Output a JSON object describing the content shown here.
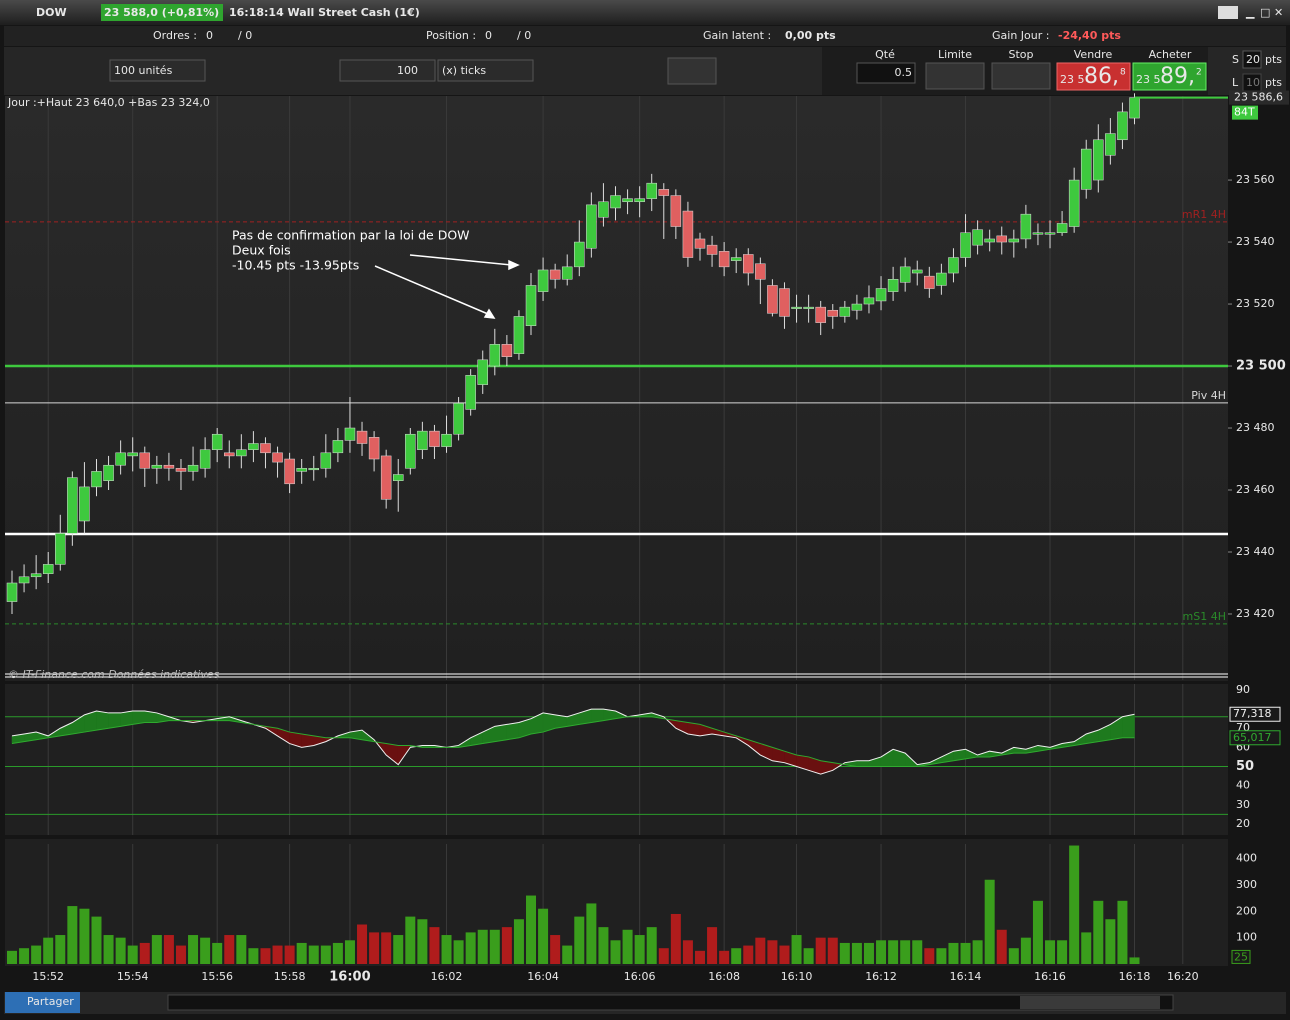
{
  "header": {
    "symbol": "DOW",
    "quote": "23 588,0 (+0,81%)",
    "instrument": "16:18:14 Wall Street Cash (1€)"
  },
  "status": {
    "orders_label": "Ordres :",
    "orders": "0",
    "orders_total": "/ 0",
    "position_label": "Position :",
    "position": "0",
    "position_total": "/ 0",
    "latent_label": "Gain latent :",
    "latent": "0,00 pts",
    "day_label": "Gain Jour :",
    "day": "-24,40 pts"
  },
  "order_bar": {
    "units": "100 unités",
    "ticks_value": "100",
    "ticks_unit": "(x) ticks",
    "qty_label": "Qté",
    "qty": "0.5",
    "limit_label": "Limite",
    "stop_label": "Stop",
    "sell_label": "Vendre",
    "sell_prefix": "23 5",
    "sell_big": "86,",
    "sell_sup": "8",
    "buy_label": "Acheter",
    "buy_prefix": "23 5",
    "buy_big": "89,",
    "buy_sup": "2",
    "s_label": "S",
    "s_value": "20",
    "s_unit": "pts",
    "l_label": "L",
    "l_value": "10",
    "l_unit": "pts"
  },
  "footer": {
    "share": "Partager"
  },
  "chart_data": [
    {
      "type": "candlestick",
      "info": "Jour :+Haut 23 640,0 +Bas 23 324,0",
      "credit": "© IT-Finance.com Données indicatives",
      "annotation": [
        "Pas de confirmation par la loi de DOW",
        "Deux fois",
        "-10.45 pts -13.95pts"
      ],
      "up_color": "#3ec93e",
      "down_color": "#e06060",
      "ylim": [
        23398.7,
        23586.8
      ],
      "yticks": [
        {
          "value": 23420,
          "label": "23 420"
        },
        {
          "value": 23440,
          "label": "23 440"
        },
        {
          "value": 23460,
          "label": "23 460"
        },
        {
          "value": 23480,
          "label": "23 480"
        },
        {
          "value": 23500,
          "label": "23 500"
        },
        {
          "value": 23520,
          "label": "23 520"
        },
        {
          "value": 23540,
          "label": "23 540"
        },
        {
          "value": 23560,
          "label": "23 560"
        }
      ],
      "levels": [
        {
          "value": 23546.5,
          "label": "mR1 4H",
          "color": "#a02020",
          "style": "dashed"
        },
        {
          "value": 23500,
          "color": "#3ec93e",
          "style": "thick"
        },
        {
          "value": 23488.1,
          "label": "Piv 4H",
          "color": "#d8d8d8",
          "style": "solid"
        },
        {
          "value": 23445.8,
          "color": "#ffffff",
          "style": "thick"
        },
        {
          "value": 23416.8,
          "label": "mS1 4H",
          "color": "#2a8a2a",
          "style": "dashed"
        },
        {
          "value": 23400,
          "color": "#ffffff",
          "style": "double"
        }
      ],
      "last_value_label": "23 586,6",
      "last_tag": "84T",
      "open": [
        23424,
        23430,
        23432,
        23433,
        23436,
        23446,
        23450,
        23461,
        23463,
        23468,
        23471,
        23472,
        23467,
        23468,
        23467,
        23466,
        23467,
        23473,
        23472,
        23471,
        23473,
        23475,
        23472,
        23470,
        23466,
        23467,
        23467,
        23472,
        23476,
        23479,
        23477,
        23471,
        23463,
        23467,
        23473,
        23479,
        23474,
        23478,
        23486,
        23494,
        23500,
        23507,
        23504,
        23513,
        23524,
        23531,
        23528,
        23532,
        23538,
        23548,
        23551,
        23553,
        23553,
        23554,
        23557,
        23555,
        23550,
        23541,
        23539,
        23537,
        23534,
        23536,
        23533,
        23526,
        23525,
        23519,
        23519,
        23519,
        23518,
        23516,
        23518,
        23520,
        23521,
        23524,
        23527,
        23530,
        23529,
        23526,
        23530,
        23535,
        23539,
        23540,
        23542,
        23540,
        23541,
        23543,
        23543,
        23543,
        23545,
        23557,
        23560,
        23568,
        23573,
        23580,
        null,
        null,
        null,
        null
      ],
      "high": [
        23434,
        23436,
        23439,
        23440,
        23452,
        23466,
        23469,
        23470,
        23471,
        23476,
        23477,
        23474,
        23471,
        23472,
        23470,
        23474,
        23477,
        23480,
        23476,
        23478,
        23479,
        23477,
        23474,
        23472,
        23470,
        23471,
        23478,
        23480,
        23490,
        23482,
        23479,
        23473,
        23470,
        23480,
        23482,
        23481,
        23484,
        23490,
        23499,
        23505,
        23512,
        23510,
        23518,
        23530,
        23535,
        23533,
        23536,
        23547,
        23556,
        23559,
        23558,
        23557,
        23558,
        23562,
        23559,
        23557,
        23553,
        23543,
        23542,
        23540,
        23538,
        23538,
        23535,
        23528,
        23527,
        23523,
        23523,
        23521,
        23520,
        23521,
        23523,
        23526,
        23529,
        23532,
        23535,
        23534,
        23532,
        23533,
        23538,
        23549,
        23547,
        23544,
        23545,
        23544,
        23552,
        23546,
        23547,
        23550,
        23564,
        23573,
        23578,
        23580,
        23585,
        23588,
        null,
        null,
        null,
        null
      ],
      "low": [
        23420,
        23427,
        23428,
        23430,
        23434,
        23442,
        23446,
        23458,
        23460,
        23465,
        23466,
        23461,
        23462,
        23463,
        23460,
        23463,
        23464,
        23469,
        23467,
        23467,
        23469,
        23467,
        23464,
        23459,
        23462,
        23463,
        23464,
        23469,
        23472,
        23471,
        23466,
        23454,
        23453,
        23465,
        23470,
        23470,
        23472,
        23476,
        23484,
        23491,
        23497,
        23500,
        23502,
        23510,
        23521,
        23525,
        23526,
        23529,
        23535,
        23545,
        23547,
        23549,
        23548,
        23550,
        23541,
        23541,
        23532,
        23534,
        23532,
        23529,
        23530,
        23526,
        23520,
        23516,
        23512,
        23514,
        23514,
        23510,
        23512,
        23514,
        23515,
        23517,
        23518,
        23521,
        23524,
        23526,
        23522,
        23523,
        23527,
        23532,
        23536,
        23537,
        23536,
        23535,
        23538,
        23539,
        23538,
        23542,
        23543,
        23554,
        23556,
        23565,
        23570,
        23578,
        null,
        null,
        null,
        null
      ],
      "close": [
        23430,
        23432,
        23433,
        23436,
        23446,
        23464,
        23461,
        23466,
        23468,
        23472,
        23472,
        23467,
        23468,
        23467,
        23466,
        23468,
        23473,
        23478,
        23471,
        23473,
        23475,
        23472,
        23469,
        23462,
        23467,
        23467,
        23472,
        23476,
        23480,
        23475,
        23470,
        23457,
        23465,
        23478,
        23479,
        23474,
        23478,
        23488,
        23497,
        23502,
        23507,
        23503,
        23516,
        23526,
        23531,
        23528,
        23532,
        23540,
        23552,
        23553,
        23555,
        23554,
        23554,
        23559,
        23555,
        23545,
        23535,
        23538,
        23536,
        23532,
        23535,
        23530,
        23528,
        23517,
        23516,
        23519,
        23519,
        23514,
        23516,
        23519,
        23520,
        23522,
        23525,
        23528,
        23532,
        23531,
        23525,
        23530,
        23535,
        23543,
        23544,
        23541,
        23540,
        23541,
        23549,
        23543,
        23543,
        23546,
        23560,
        23570,
        23573,
        23575,
        23582,
        23586.6,
        null,
        null,
        null,
        null
      ]
    },
    {
      "type": "line",
      "ylim": [
        14.2,
        92.6
      ],
      "yticks": [
        20,
        30,
        40,
        50,
        60,
        70,
        90
      ],
      "levels": [
        76,
        50,
        25
      ],
      "fill_up": "#1e7a1e",
      "fill_down": "#6a1010",
      "series": [
        {
          "color": "#f0f0f0",
          "last_value_label": "77,318",
          "values": [
            66,
            67,
            68,
            66,
            70,
            73,
            77,
            79,
            78,
            78,
            79,
            79,
            78,
            76,
            74,
            73,
            74,
            75,
            76,
            74,
            72,
            70,
            66,
            62,
            60,
            61,
            63,
            66,
            68,
            69,
            64,
            56,
            51,
            60,
            61,
            61,
            60,
            61,
            65,
            68,
            71,
            72,
            73,
            75,
            78,
            77,
            76,
            78,
            80,
            80,
            79,
            76,
            77,
            78,
            76,
            70,
            67,
            66,
            67,
            66,
            65,
            61,
            56,
            53,
            52,
            50,
            48,
            46,
            48,
            52,
            53,
            53,
            55,
            59,
            57,
            51,
            52,
            55,
            58,
            59,
            56,
            58,
            57,
            60,
            59,
            61,
            60,
            62,
            63,
            67,
            69,
            72,
            76,
            77.318,
            null,
            null,
            null,
            null
          ]
        },
        {
          "color": "#2faa2f",
          "last_value_label": "65,017",
          "values": [
            62,
            63,
            64,
            65,
            66,
            67,
            68,
            69,
            70,
            71,
            72,
            73,
            73,
            74,
            74,
            74,
            74,
            74,
            74,
            73,
            72,
            71,
            70,
            68,
            67,
            66,
            65,
            65,
            65,
            64,
            63,
            62,
            61,
            61,
            60,
            60,
            60,
            60,
            61,
            62,
            63,
            64,
            65,
            67,
            68,
            70,
            71,
            72,
            73,
            74,
            75,
            76,
            76,
            76,
            75,
            74,
            73,
            72,
            70,
            68,
            66,
            64,
            62,
            60,
            58,
            56,
            55,
            53,
            52,
            51,
            50,
            50,
            50,
            50,
            50,
            50,
            51,
            52,
            53,
            54,
            55,
            55,
            56,
            57,
            57,
            58,
            59,
            60,
            61,
            62,
            63,
            64,
            65,
            65.017,
            null,
            null,
            null,
            null
          ]
        }
      ]
    },
    {
      "type": "bar",
      "ylim": [
        0,
        452
      ],
      "yticks": [
        100,
        200,
        300,
        400
      ],
      "up_color": "#3a9e1c",
      "down_color": "#b01c1c",
      "last_value_label": "25",
      "categories": [
        null,
        null,
        null,
        "15:52",
        null,
        null,
        null,
        null,
        null,
        null,
        "15:54",
        null,
        null,
        null,
        null,
        null,
        null,
        "15:56",
        null,
        null,
        null,
        null,
        null,
        "15:58",
        null,
        null,
        null,
        null,
        "16:00",
        null,
        null,
        null,
        null,
        null,
        null,
        null,
        "16:02",
        null,
        null,
        null,
        null,
        null,
        null,
        null,
        "16:04",
        null,
        null,
        null,
        null,
        null,
        null,
        null,
        "16:06",
        null,
        null,
        null,
        null,
        null,
        null,
        "16:08",
        null,
        null,
        null,
        null,
        null,
        "16:10",
        null,
        null,
        null,
        null,
        null,
        null,
        "16:12",
        null,
        null,
        null,
        null,
        null,
        null,
        "16:14",
        null,
        null,
        null,
        null,
        null,
        null,
        "16:16",
        null,
        null,
        null,
        null,
        null,
        null,
        "16:18",
        null,
        null,
        null,
        "16:20"
      ],
      "values": [
        50,
        60,
        70,
        100,
        110,
        220,
        210,
        180,
        110,
        100,
        70,
        80,
        110,
        110,
        70,
        110,
        100,
        80,
        110,
        110,
        60,
        60,
        70,
        70,
        80,
        70,
        70,
        80,
        90,
        150,
        120,
        120,
        110,
        180,
        170,
        140,
        110,
        90,
        120,
        130,
        130,
        140,
        170,
        260,
        210,
        110,
        70,
        180,
        230,
        140,
        90,
        130,
        110,
        140,
        60,
        190,
        90,
        50,
        140,
        50,
        60,
        70,
        100,
        90,
        70,
        110,
        60,
        100,
        100,
        80,
        80,
        80,
        90,
        90,
        90,
        90,
        60,
        60,
        80,
        80,
        90,
        320,
        130,
        60,
        100,
        240,
        90,
        90,
        450,
        120,
        240,
        170,
        240,
        25,
        null,
        null,
        null,
        null
      ]
    }
  ]
}
